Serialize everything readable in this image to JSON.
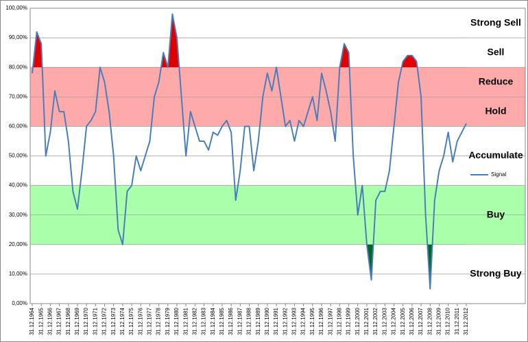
{
  "chart_data": {
    "type": "line",
    "categories": [
      "31.12.1964",
      null,
      "31.12.1965",
      null,
      "31.12.1966",
      null,
      "31.12.1967",
      null,
      "31.12.1968",
      null,
      "31.12.1969",
      null,
      "31.12.1970",
      null,
      "31.12.1971",
      null,
      "31.12.1972",
      null,
      "31.12.1973",
      null,
      "31.12.1974",
      null,
      "31.12.1975",
      null,
      "31.12.1976",
      null,
      "31.12.1977",
      null,
      "31.12.1978",
      null,
      "31.12.1979",
      null,
      "31.12.1980",
      null,
      "31.12.1981",
      null,
      "31.12.1982",
      null,
      "31.12.1983",
      null,
      "31.12.1984",
      null,
      "31.12.1985",
      null,
      "31.12.1986",
      null,
      "31.12.1987",
      null,
      "31.12.1988",
      null,
      "31.12.1989",
      null,
      "31.12.1990",
      null,
      "31.12.1991",
      null,
      "31.12.1992",
      null,
      "31.12.1993",
      null,
      "31.12.1994",
      null,
      "31.12.1995",
      null,
      "31.12.1996",
      null,
      "31.12.1997",
      null,
      "31.12.1998",
      null,
      "31.12.1999",
      null,
      "31.12.2000",
      null,
      "31.12.2001",
      null,
      "31.12.2002",
      null,
      "31.12.2003",
      null,
      "31.12.2004",
      null,
      "31.12.2005",
      null,
      "31.12.2006",
      null,
      "31.12.2007",
      null,
      "31.12.2008",
      null,
      "31.12.2009",
      null,
      "31.12.2010",
      null,
      "31.12.2011",
      null,
      "31.12.2012"
    ],
    "series": [
      {
        "name": "Signal",
        "color": "#4a7ebb",
        "values": [
          78,
          92,
          88,
          50,
          58,
          72,
          65,
          65,
          55,
          38,
          32,
          45,
          60,
          62,
          65,
          80,
          75,
          65,
          50,
          25,
          20,
          38,
          40,
          50,
          45,
          50,
          55,
          70,
          75,
          85,
          80,
          98,
          90,
          70,
          50,
          65,
          60,
          55,
          55,
          52,
          58,
          57,
          60,
          62,
          58,
          35,
          45,
          60,
          60,
          45,
          55,
          70,
          78,
          72,
          80,
          70,
          60,
          62,
          55,
          62,
          60,
          65,
          70,
          62,
          78,
          72,
          65,
          55,
          80,
          88,
          85,
          50,
          30,
          40,
          20,
          8,
          35,
          38,
          38,
          45,
          60,
          75,
          82,
          84,
          84,
          82,
          70,
          30,
          5,
          35,
          45,
          50,
          58,
          48,
          55,
          58,
          61
        ]
      }
    ],
    "zones": [
      {
        "label": "Strong Sell",
        "from": 90,
        "to": 100,
        "fill": "#e00000"
      },
      {
        "label": "Sell",
        "from": 80,
        "to": 90,
        "fill": "#e00000"
      },
      {
        "label": "Reduce",
        "from": 70,
        "to": 80,
        "background": "#ffaaaa"
      },
      {
        "label": "Hold",
        "from": 60,
        "to": 70,
        "background": "#ffaaaa"
      },
      {
        "label": "Accumulate",
        "from": 40,
        "to": 60
      },
      {
        "label": "Buy",
        "from": 20,
        "to": 40,
        "background": "#aaffaa"
      },
      {
        "label": "Strong Buy",
        "from": 0,
        "to": 20,
        "fill": "#006622"
      }
    ],
    "ylim": [
      0,
      100
    ],
    "yticks": [
      {
        "value": 0,
        "label": "0,00%"
      },
      {
        "value": 10,
        "label": "10,00%"
      },
      {
        "value": 20,
        "label": "20,00%"
      },
      {
        "value": 30,
        "label": "30,00%"
      },
      {
        "value": 40,
        "label": "40,00%"
      },
      {
        "value": 50,
        "label": "50,00%"
      },
      {
        "value": 60,
        "label": "60,00%"
      },
      {
        "value": 70,
        "label": "70,00%"
      },
      {
        "value": 80,
        "label": "80,00%"
      },
      {
        "value": 90,
        "label": "90,00%"
      },
      {
        "value": 100,
        "label": "100,00%"
      }
    ],
    "grid": true,
    "legend": "right"
  }
}
